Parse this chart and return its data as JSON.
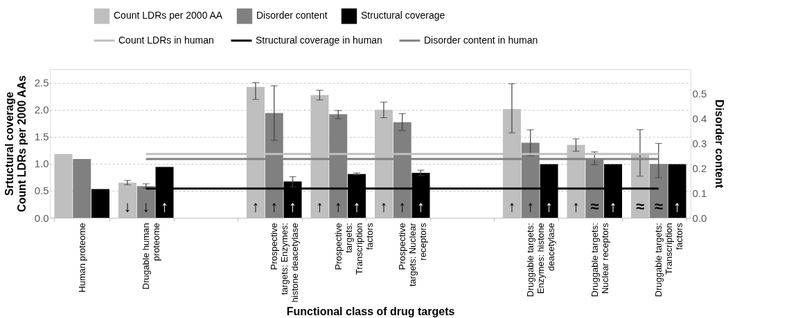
{
  "chart_data": {
    "type": "bar",
    "xlabel": "Functional class of drug targets",
    "ylabel": "Srtuctural coverage\nCount LDRs per 2000 AAs",
    "y2label": "Disorder content",
    "categories": [
      "Human proteome",
      "Drugable human proteome",
      null,
      "Prospective targets: Enzymes: histone deacetylase",
      "Prospective targets: Transcription factors",
      "Prospective targets: Nuclear receptors",
      null,
      "Druggable targets: Enzymes: histone deacetylase",
      "Druggable targets: Nuclear receptors",
      "Druggable targets: Transcription factors"
    ],
    "series": [
      {
        "name": "Count LDRs per 2000 AA",
        "color": "#bfbfbf",
        "values": [
          1.18,
          0.65,
          null,
          2.42,
          2.27,
          2.0,
          null,
          2.01,
          1.35,
          1.18
        ],
        "errors": [
          null,
          0.04,
          null,
          [
            2.19,
            2.5
          ],
          [
            2.18,
            2.36
          ],
          [
            1.85,
            2.14
          ],
          null,
          [
            1.57,
            2.48
          ],
          [
            1.23,
            1.46
          ],
          [
            0.77,
            1.63
          ]
        ],
        "value_labels": [
          null,
          "↓",
          null,
          "↑",
          "↑",
          "↑",
          null,
          "↑",
          "↑",
          "≈"
        ]
      },
      {
        "name": "Disorder content",
        "axis": "y2",
        "color": "#808080",
        "values": [
          0.237,
          0.128,
          null,
          0.423,
          0.418,
          0.386,
          null,
          0.303,
          0.24,
          0.217
        ],
        "errors": [
          null,
          0.009,
          null,
          [
            0.313,
            0.533
          ],
          [
            0.4,
            0.433
          ],
          [
            0.352,
            0.42
          ],
          null,
          [
            0.25,
            0.355
          ],
          [
            0.214,
            0.266
          ],
          [
            0.162,
            0.3
          ]
        ],
        "value_labels": [
          null,
          "↓",
          null,
          "↑",
          "↑",
          "↑",
          null,
          "↑",
          "≈",
          "≈"
        ]
      },
      {
        "name": "Structural coverage",
        "color": "#000000",
        "values": [
          0.53,
          0.94,
          null,
          0.67,
          0.81,
          0.83,
          null,
          0.99,
          0.99,
          0.99
        ],
        "errors": [
          null,
          null,
          null,
          [
            0.57,
            0.76
          ],
          [
            0.79,
            0.83
          ],
          [
            0.78,
            0.88
          ],
          null,
          null,
          null,
          null
        ],
        "value_labels": [
          null,
          "↑",
          null,
          "↑",
          "↑",
          "↑",
          null,
          "↑",
          "↑",
          "↑"
        ]
      },
      {
        "name": "Count LDRs in human",
        "type": "line",
        "color": "#bfbfbf",
        "values": [
          null,
          1.18,
          1.18,
          1.18,
          1.18,
          1.18,
          1.18,
          1.18,
          1.18,
          1.18
        ]
      },
      {
        "name": "Structural coverage in human",
        "type": "line",
        "color": "#000000",
        "values": [
          null,
          0.54,
          0.54,
          0.54,
          0.54,
          0.54,
          0.54,
          0.54,
          0.54,
          0.54
        ]
      },
      {
        "name": "Disorder content in human",
        "type": "line",
        "axis": "y2",
        "color": "#808080",
        "values": [
          null,
          0.237,
          0.237,
          0.237,
          0.237,
          0.237,
          0.237,
          0.237,
          0.237,
          0.237
        ]
      }
    ],
    "ylim": [
      0,
      2.75
    ],
    "yticks": [
      {
        "value": 0,
        "label": "0.0"
      },
      0.5,
      {
        "value": 1,
        "label": "1.0"
      },
      1.5,
      {
        "value": 2,
        "label": "2.0"
      },
      2.5
    ],
    "y2lim": [
      0,
      0.6
    ],
    "y2ticks": [
      {
        "value": 0,
        "label": "0.0"
      },
      0.1,
      0.2,
      0.3,
      0.4,
      0.5
    ],
    "grid": "y",
    "legend": "top"
  }
}
